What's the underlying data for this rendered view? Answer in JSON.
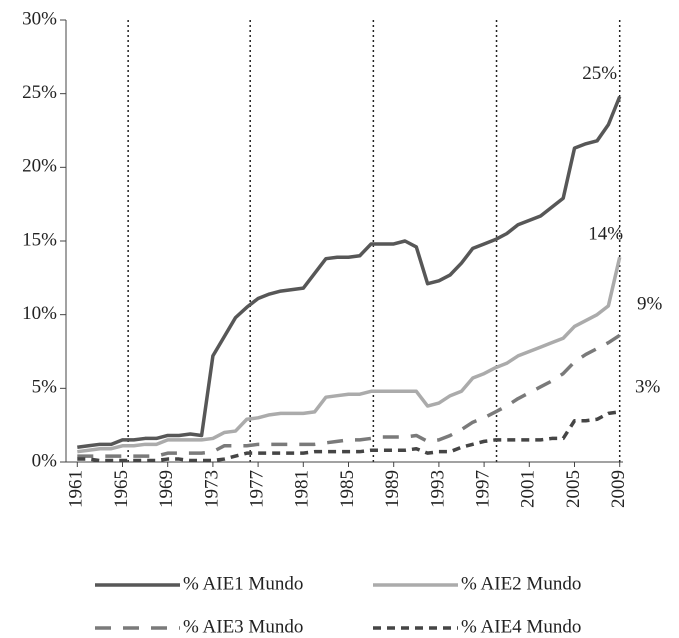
{
  "chart_data": {
    "type": "line",
    "x": [
      1961,
      1962,
      1963,
      1964,
      1965,
      1966,
      1967,
      1968,
      1969,
      1970,
      1971,
      1972,
      1973,
      1974,
      1975,
      1976,
      1977,
      1978,
      1979,
      1980,
      1981,
      1982,
      1983,
      1984,
      1985,
      1986,
      1987,
      1988,
      1989,
      1990,
      1991,
      1992,
      1993,
      1994,
      1995,
      1996,
      1997,
      1998,
      1999,
      2000,
      2001,
      2002,
      2003,
      2004,
      2005,
      2006,
      2007,
      2008,
      2009
    ],
    "series": [
      {
        "name": "% AIE1 Mundo",
        "color": "#575757",
        "dash": null,
        "end_label": "25%",
        "values": [
          1.0,
          1.1,
          1.2,
          1.2,
          1.5,
          1.5,
          1.6,
          1.6,
          1.8,
          1.8,
          1.9,
          1.8,
          7.2,
          8.5,
          9.8,
          10.5,
          11.1,
          11.4,
          11.6,
          11.7,
          11.8,
          12.8,
          13.8,
          13.9,
          13.9,
          14.0,
          14.8,
          14.8,
          14.8,
          15.0,
          14.6,
          12.1,
          12.3,
          12.7,
          13.5,
          14.5,
          14.8,
          15.1,
          15.5,
          16.1,
          16.4,
          16.7,
          17.3,
          17.9,
          21.3,
          21.6,
          21.8,
          22.9,
          24.8
        ]
      },
      {
        "name": "% AIE2 Mundo",
        "color": "#ababab",
        "dash": null,
        "end_label": "14%",
        "values": [
          0.7,
          0.8,
          0.9,
          0.9,
          1.1,
          1.1,
          1.2,
          1.2,
          1.5,
          1.5,
          1.5,
          1.5,
          1.6,
          2.0,
          2.1,
          2.9,
          3.0,
          3.2,
          3.3,
          3.3,
          3.3,
          3.4,
          4.4,
          4.5,
          4.6,
          4.6,
          4.8,
          4.8,
          4.8,
          4.8,
          4.8,
          3.8,
          4.0,
          4.5,
          4.8,
          5.7,
          6.0,
          6.4,
          6.7,
          7.2,
          7.5,
          7.8,
          8.1,
          8.4,
          9.2,
          9.6,
          10.0,
          10.6,
          13.9
        ]
      },
      {
        "name": "% AIE3 Mundo",
        "color": "#7a7a7a",
        "dash": "16,12",
        "end_label": "9%",
        "values": [
          0.4,
          0.4,
          0.4,
          0.4,
          0.4,
          0.4,
          0.4,
          0.4,
          0.6,
          0.6,
          0.6,
          0.6,
          0.7,
          1.1,
          1.1,
          1.1,
          1.2,
          1.2,
          1.2,
          1.2,
          1.2,
          1.2,
          1.3,
          1.4,
          1.5,
          1.5,
          1.6,
          1.7,
          1.7,
          1.7,
          1.8,
          1.4,
          1.5,
          1.8,
          2.2,
          2.7,
          3.0,
          3.4,
          3.8,
          4.3,
          4.7,
          5.1,
          5.5,
          6.0,
          6.8,
          7.3,
          7.7,
          8.1,
          8.6
        ]
      },
      {
        "name": "% AIE4 Mundo",
        "color": "#454545",
        "dash": "8,6",
        "end_label": "3%",
        "values": [
          0.2,
          0.2,
          0.1,
          0.1,
          0.1,
          0.1,
          0.1,
          0.1,
          0.2,
          0.2,
          0.1,
          0.1,
          0.1,
          0.2,
          0.4,
          0.6,
          0.6,
          0.6,
          0.6,
          0.6,
          0.6,
          0.7,
          0.7,
          0.7,
          0.7,
          0.7,
          0.8,
          0.8,
          0.8,
          0.8,
          0.9,
          0.6,
          0.7,
          0.7,
          1.0,
          1.2,
          1.4,
          1.5,
          1.5,
          1.5,
          1.5,
          1.5,
          1.6,
          1.6,
          2.8,
          2.8,
          2.9,
          3.3,
          3.4
        ]
      }
    ],
    "xlim": [
      1960,
      2010
    ],
    "xticks": [
      1961,
      1965,
      1969,
      1973,
      1977,
      1981,
      1985,
      1989,
      1993,
      1997,
      2001,
      2005,
      2009
    ],
    "ylim": [
      0,
      30
    ],
    "yticks": [
      {
        "value": 0,
        "label": "0%"
      },
      {
        "value": 5,
        "label": "5%"
      },
      {
        "value": 10,
        "label": "10%"
      },
      {
        "value": 15,
        "label": "15%"
      },
      {
        "value": 20,
        "label": "20%"
      },
      {
        "value": 25,
        "label": "25%"
      },
      {
        "value": 30,
        "label": "30%"
      }
    ],
    "vlines": [
      1965.5,
      1976.3,
      1987.2,
      1998.1,
      2009
    ],
    "legend": "bottom"
  }
}
